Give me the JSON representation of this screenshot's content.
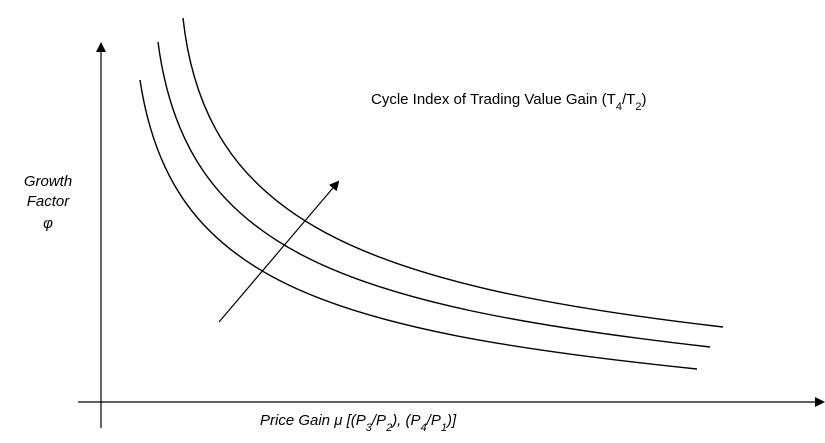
{
  "y_axis_label": [
    "Growth",
    "Factor",
    "φ"
  ],
  "x_axis_label": {
    "parts": [
      {
        "text": "Price Gain μ    [(P"
      },
      {
        "text": "3",
        "sub": true
      },
      {
        "text": "/P"
      },
      {
        "text": "2",
        "sub": true
      },
      {
        "text": "), (P"
      },
      {
        "text": "4",
        "sub": true
      },
      {
        "text": "/P"
      },
      {
        "text": "1",
        "sub": true
      },
      {
        "text": ")]"
      }
    ]
  },
  "annotation": {
    "parts": [
      {
        "text": "Cycle Index of Trading Value Gain (T"
      },
      {
        "text": "4",
        "sub": true
      },
      {
        "text": "/T"
      },
      {
        "text": "2",
        "sub": true
      },
      {
        "text": ")"
      }
    ]
  }
}
